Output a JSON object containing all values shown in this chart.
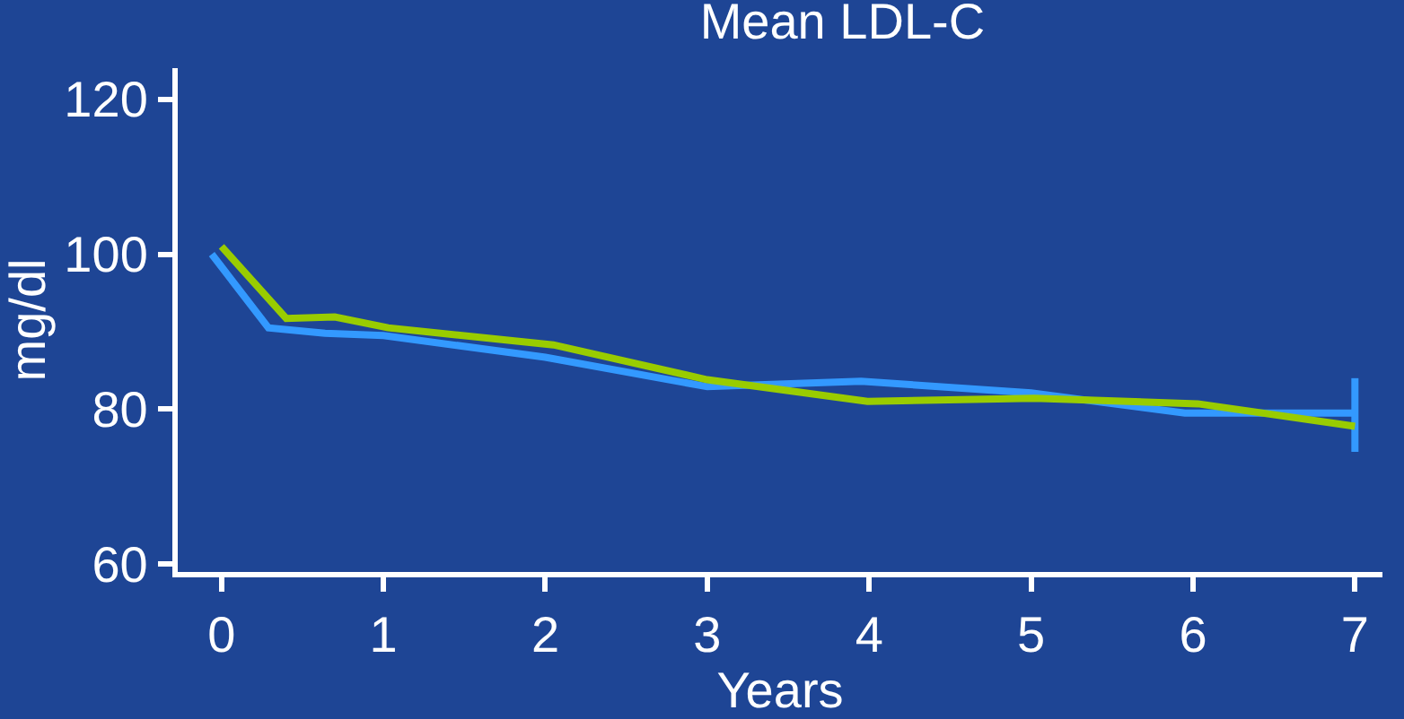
{
  "chart_data": {
    "type": "line",
    "title": "Mean LDL-C",
    "xlabel": "Years",
    "ylabel": "mg/dl",
    "xlim": [
      -0.27,
      7.17
    ],
    "xticks": [
      0,
      1,
      2,
      3,
      4,
      5,
      6,
      7
    ],
    "ylim": [
      59,
      124
    ],
    "yticks": [
      60,
      80,
      100,
      120
    ],
    "grid": false,
    "marker": "none",
    "line_style": "solid",
    "series": [
      {
        "color": "#3399ff",
        "x": [
          -0.06,
          0.29,
          0.64,
          1.0,
          2.0,
          3.0,
          3.95,
          5.0,
          5.95,
          7.0
        ],
        "values": [
          100,
          90.5,
          89.8,
          89.5,
          86.7,
          82.9,
          83.6,
          82.1,
          79.5,
          79.5
        ],
        "errors": [
          null,
          null,
          null,
          null,
          null,
          null,
          null,
          null,
          null,
          [
            74.5,
            84
          ]
        ]
      },
      {
        "color": "#99cc00",
        "x": [
          0,
          0.4,
          0.7,
          1.03,
          2.05,
          3.0,
          3.99,
          5.02,
          6.03,
          7.0
        ],
        "values": [
          101,
          91.7,
          91.9,
          90.5,
          88.3,
          83.8,
          81,
          81.4,
          80.7,
          77.8
        ]
      }
    ]
  }
}
